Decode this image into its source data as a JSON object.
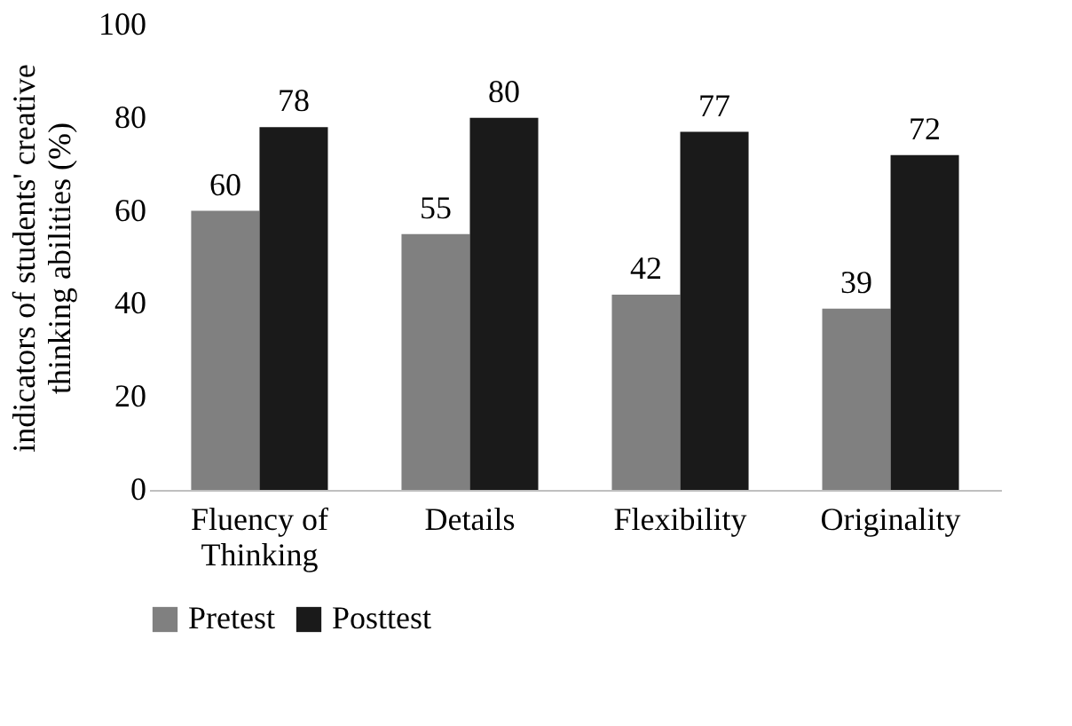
{
  "chart_data": {
    "type": "bar",
    "ylabel": "indicators of students' creative thinking abilities (%)",
    "categories": [
      "Fluency of Thinking",
      "Details",
      "Flexibility",
      "Originality"
    ],
    "series": [
      {
        "name": "Pretest",
        "color": "#808080",
        "values": [
          60,
          55,
          42,
          39
        ]
      },
      {
        "name": "Posttest",
        "color": "#1a1a1a",
        "values": [
          78,
          80,
          77,
          72
        ]
      }
    ],
    "ylim": [
      0,
      100
    ],
    "yticks": [
      0,
      20,
      40,
      60,
      80,
      100
    ],
    "grid": false,
    "legend": "bottom",
    "data_labels": true
  }
}
